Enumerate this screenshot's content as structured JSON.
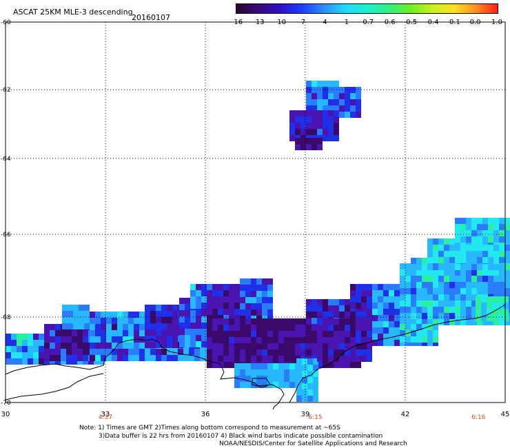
{
  "header": {
    "title": "ASCAT 25KM MLE-3 descending",
    "date": "20160107"
  },
  "colorbar": {
    "labels": [
      "-16",
      "-13",
      "-10",
      "-7",
      "-4",
      "-1",
      "-0.7",
      "-0.6",
      "-0.5",
      "-0.4",
      "-0.1",
      "0.0",
      "1.0"
    ],
    "stops": [
      "#2a0530",
      "#3a0a7a",
      "#3010c8",
      "#1a3cff",
      "#2a8cff",
      "#22d8ff",
      "#1cf0d0",
      "#30f080",
      "#6cf020",
      "#c8f020",
      "#ffe020",
      "#ff9020",
      "#ff2010"
    ]
  },
  "axes": {
    "y_ticks": [
      "-60",
      "-62",
      "-64",
      "-66",
      "-68",
      "-70"
    ],
    "x_ticks": [
      "30",
      "33",
      "36",
      "39",
      "42",
      "45"
    ],
    "x_range": [
      30,
      45
    ],
    "y_range": [
      -70,
      -60
    ]
  },
  "times": [
    {
      "label": "4:37",
      "lon": 33
    },
    {
      "label": "6:15",
      "lon": 39.3
    },
    {
      "label": "6:16",
      "lon": 44.2
    }
  ],
  "notes": {
    "line1": "Note: 1) Times are GMT 2)Times along bottom correspond to measurement at ~65S",
    "line2": "3)Data buffer is 22 hrs from 20160107 4) Black wind barbs indicate possible contamination",
    "line3": "NOAA/NESDIS/Center for Satellite Applications and Research"
  },
  "colors": {
    "dark_purple": "#3a0a6a",
    "purple": "#4a14b0",
    "blue": "#2030e8",
    "mid_blue": "#2a7cff",
    "light_blue": "#28b8ff",
    "cyan": "#22e8f0",
    "green": "#28f0a0",
    "coastline": "#000000"
  }
}
